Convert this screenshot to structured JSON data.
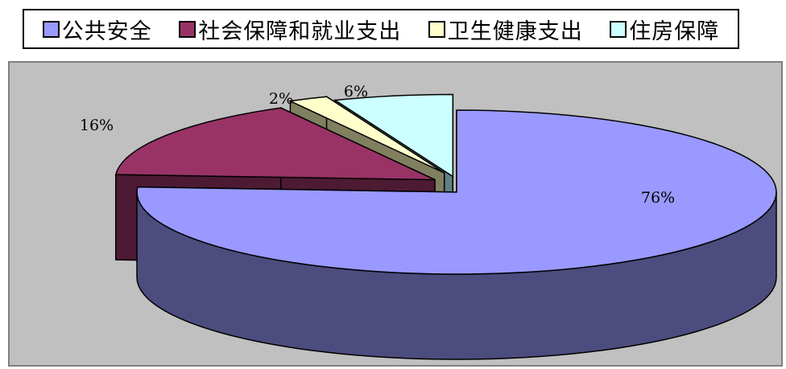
{
  "chart_data": {
    "type": "pie",
    "style": "3d-exploded",
    "categories": [
      "公共安全",
      "社会保障和就业支出",
      "卫生健康支出",
      "住房保障"
    ],
    "values": [
      76,
      16,
      2,
      6
    ],
    "labels": [
      "76%",
      "16%",
      "2%",
      "6%"
    ],
    "colors": [
      "#9999ff",
      "#993366",
      "#ffffcc",
      "#ccffff"
    ],
    "side_colors": [
      "#4c4c7e",
      "#4d1a33",
      "#808060",
      "#5f8080"
    ],
    "legend_position": "top",
    "background": "#c0c0c0"
  },
  "legend": {
    "items": [
      {
        "label": "公共安全",
        "color": "#9999ff"
      },
      {
        "label": "社会保障和就业支出",
        "color": "#993366"
      },
      {
        "label": "卫生健康支出",
        "color": "#ffffcc"
      },
      {
        "label": "住房保障",
        "color": "#ccffff"
      }
    ]
  }
}
